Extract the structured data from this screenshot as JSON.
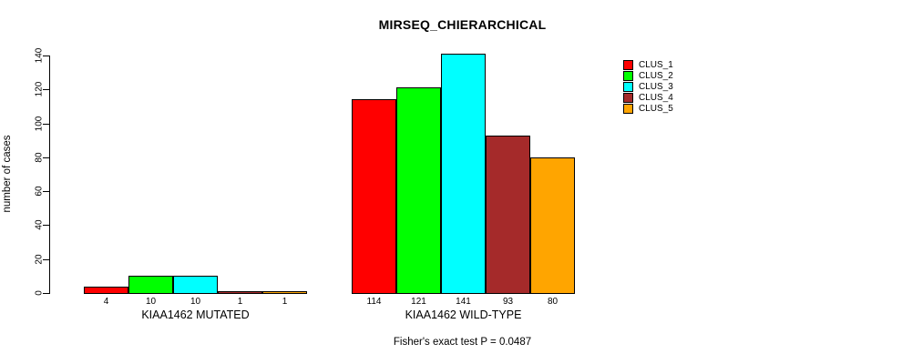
{
  "chart_data": {
    "type": "bar",
    "title": "MIRSEQ_CHIERARCHICAL",
    "ylabel": "number of cases",
    "xlabel": "",
    "ylim": [
      0,
      140
    ],
    "yticks": [
      0,
      20,
      40,
      60,
      80,
      100,
      120,
      140
    ],
    "grid": false,
    "legend_position": "top-right",
    "categories": [
      "KIAA1462 MUTATED",
      "KIAA1462 WILD-TYPE"
    ],
    "series": [
      {
        "name": "CLUS_1",
        "color": "#ff0000",
        "values": [
          4,
          114
        ]
      },
      {
        "name": "CLUS_2",
        "color": "#00ff00",
        "values": [
          10,
          121
        ]
      },
      {
        "name": "CLUS_3",
        "color": "#00ffff",
        "values": [
          10,
          141
        ]
      },
      {
        "name": "CLUS_4",
        "color": "#a52a2a",
        "values": [
          1,
          93
        ]
      },
      {
        "name": "CLUS_5",
        "color": "#ffa500",
        "values": [
          1,
          80
        ]
      }
    ],
    "bar_value_labels_shown": true,
    "annotation": "Fisher's exact test P = 0.0487"
  },
  "colors": {
    "background": "#ffffff",
    "axis": "#000000",
    "bar_border": "#000000",
    "text": "#000000"
  }
}
